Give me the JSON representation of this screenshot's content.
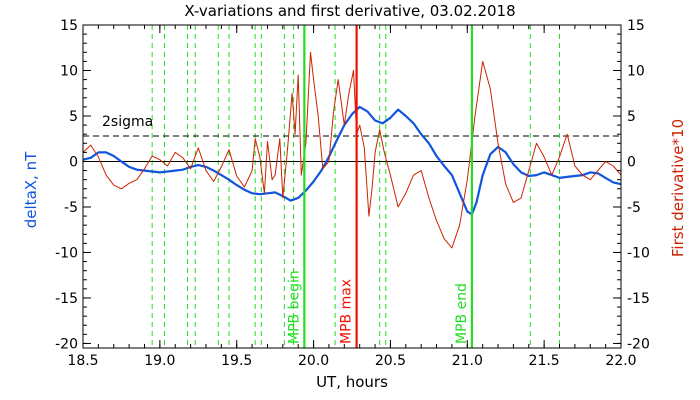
{
  "chart_data": {
    "type": "line",
    "title": "X-variations and first derivative, 03.02.2018",
    "xlabel": "UT, hours",
    "ylabel_left": "deltaX, nT",
    "ylabel_right": "First derivative*10",
    "xlim": [
      18.5,
      22.0
    ],
    "ylim": [
      -20.5,
      15
    ],
    "x_ticks": [
      "18.5",
      "19.0",
      "19.5",
      "20.0",
      "20.5",
      "21.0",
      "21.5",
      "22.0"
    ],
    "y_ticks_left": [
      "15",
      "10",
      "5",
      "0",
      "-5",
      "-10",
      "-15",
      "-20"
    ],
    "y_ticks_right": [
      "15",
      "10",
      "5",
      "0",
      "-5",
      "-10",
      "-15",
      "-20"
    ],
    "colors": {
      "deltaX": "#1155dd",
      "derivative": "#cc2200",
      "marker_green": "#22dd22",
      "marker_red": "#ee1100"
    },
    "threshold": {
      "label": "2sigma",
      "value": 2.8
    },
    "zero_line": 0,
    "dashed_green_lines_x": [
      18.95,
      19.03,
      19.18,
      19.23,
      19.38,
      19.45,
      19.62,
      19.66,
      19.81,
      19.87,
      20.14,
      20.43,
      20.47,
      21.41,
      21.6
    ],
    "markers": [
      {
        "label": "MPB begin",
        "x": 19.94,
        "color": "#22dd22"
      },
      {
        "label": "MPB max",
        "x": 20.28,
        "color": "#ee1100"
      },
      {
        "label": "MPB end",
        "x": 21.03,
        "color": "#22dd22"
      }
    ],
    "series": [
      {
        "name": "deltaX",
        "axis": "left",
        "x": [
          18.5,
          18.55,
          18.6,
          18.65,
          18.7,
          18.75,
          18.8,
          18.85,
          18.9,
          18.95,
          19.0,
          19.05,
          19.1,
          19.15,
          19.2,
          19.25,
          19.3,
          19.35,
          19.4,
          19.45,
          19.5,
          19.55,
          19.6,
          19.65,
          19.7,
          19.75,
          19.8,
          19.85,
          19.9,
          19.95,
          20.0,
          20.05,
          20.1,
          20.15,
          20.2,
          20.25,
          20.3,
          20.35,
          20.4,
          20.45,
          20.5,
          20.55,
          20.6,
          20.65,
          20.7,
          20.75,
          20.8,
          20.85,
          20.9,
          20.95,
          21.0,
          21.03,
          21.06,
          21.1,
          21.15,
          21.2,
          21.25,
          21.3,
          21.35,
          21.4,
          21.45,
          21.5,
          21.55,
          21.6,
          21.65,
          21.7,
          21.75,
          21.8,
          21.85,
          21.9,
          21.95,
          22.0
        ],
        "y": [
          0.2,
          0.4,
          1.0,
          1.0,
          0.6,
          0.0,
          -0.6,
          -0.9,
          -1.0,
          -1.1,
          -1.2,
          -1.1,
          -1.0,
          -0.9,
          -0.6,
          -0.4,
          -0.6,
          -1.0,
          -1.5,
          -2.0,
          -2.6,
          -3.1,
          -3.5,
          -3.6,
          -3.5,
          -3.4,
          -3.8,
          -4.3,
          -4.0,
          -3.2,
          -2.2,
          -1.0,
          0.5,
          2.3,
          4.0,
          5.2,
          6.0,
          5.5,
          4.5,
          4.2,
          4.8,
          5.7,
          5.0,
          4.2,
          3.0,
          2.0,
          0.6,
          -0.5,
          -1.5,
          -3.5,
          -5.5,
          -5.8,
          -4.5,
          -1.5,
          0.8,
          1.6,
          1.0,
          -0.3,
          -1.2,
          -1.6,
          -1.5,
          -1.2,
          -1.5,
          -1.8,
          -1.7,
          -1.6,
          -1.5,
          -1.2,
          -1.3,
          -1.8,
          -2.3,
          -2.5
        ]
      },
      {
        "name": "First derivative*10",
        "axis": "right",
        "x": [
          18.5,
          18.55,
          18.6,
          18.65,
          18.7,
          18.75,
          18.8,
          18.85,
          18.9,
          18.95,
          19.0,
          19.05,
          19.1,
          19.15,
          19.2,
          19.25,
          19.3,
          19.35,
          19.4,
          19.45,
          19.5,
          19.55,
          19.6,
          19.62,
          19.65,
          19.68,
          19.7,
          19.73,
          19.75,
          19.78,
          19.8,
          19.83,
          19.86,
          19.88,
          19.9,
          19.92,
          19.95,
          19.98,
          20.0,
          20.03,
          20.06,
          20.1,
          20.13,
          20.16,
          20.2,
          20.23,
          20.26,
          20.28,
          20.3,
          20.33,
          20.36,
          20.38,
          20.4,
          20.43,
          20.46,
          20.5,
          20.55,
          20.6,
          20.65,
          20.7,
          20.75,
          20.8,
          20.85,
          20.9,
          20.95,
          21.0,
          21.05,
          21.1,
          21.15,
          21.2,
          21.25,
          21.3,
          21.35,
          21.4,
          21.45,
          21.5,
          21.55,
          21.6,
          21.65,
          21.7,
          21.75,
          21.8,
          21.85,
          21.9,
          21.95,
          22.0
        ],
        "y": [
          1.0,
          1.8,
          0.5,
          -1.5,
          -2.6,
          -3.0,
          -2.4,
          -2.0,
          -0.8,
          0.6,
          0.2,
          -0.5,
          1.0,
          0.4,
          -0.8,
          1.5,
          -1.0,
          -2.2,
          -0.6,
          1.3,
          -1.6,
          -2.8,
          -1.0,
          2.5,
          0.5,
          -3.5,
          2.2,
          -2.0,
          -1.5,
          2.5,
          -4.0,
          1.2,
          7.5,
          3.0,
          9.5,
          -1.5,
          2.0,
          12.0,
          9.0,
          5.0,
          -0.8,
          0.0,
          5.5,
          9.0,
          4.0,
          7.5,
          10.0,
          3.0,
          4.0,
          1.5,
          -6.0,
          -3.0,
          1.0,
          3.5,
          1.0,
          -1.5,
          -5.0,
          -3.5,
          -1.5,
          -1.0,
          -4.0,
          -6.5,
          -8.5,
          -9.5,
          -7.0,
          -2.0,
          5.0,
          11.0,
          8.0,
          2.0,
          -2.5,
          -4.5,
          -4.0,
          -1.0,
          2.0,
          0.5,
          -1.5,
          0.5,
          3.0,
          -0.5,
          -1.5,
          -2.0,
          -1.0,
          0.0,
          -0.5,
          -1.5
        ]
      }
    ]
  }
}
